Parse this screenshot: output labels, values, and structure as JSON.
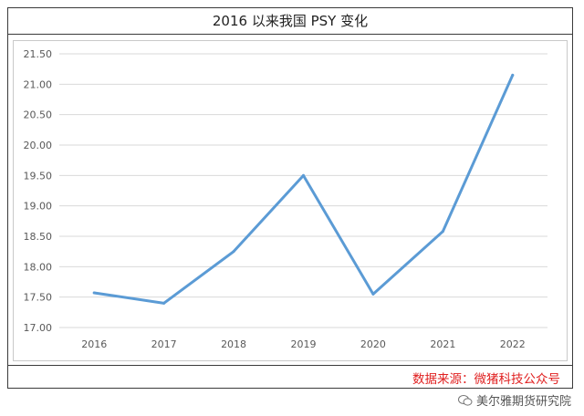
{
  "title": "2016 以来我国 PSY 变化",
  "source": "数据来源：微猪科技公众号",
  "watermark": "美尔雅期货研究院",
  "chart_data": {
    "type": "line",
    "categories": [
      "2016",
      "2017",
      "2018",
      "2019",
      "2020",
      "2021",
      "2022"
    ],
    "series": [
      {
        "values": [
          17.57,
          17.4,
          18.25,
          19.5,
          17.55,
          18.58,
          21.15
        ]
      }
    ],
    "ylim": [
      17.0,
      21.5
    ],
    "yticks": [
      "17.00",
      "17.50",
      "18.00",
      "18.50",
      "19.00",
      "19.50",
      "20.00",
      "20.50",
      "21.00",
      "21.50"
    ],
    "grid": true,
    "line_color": "#5b9bd5"
  }
}
